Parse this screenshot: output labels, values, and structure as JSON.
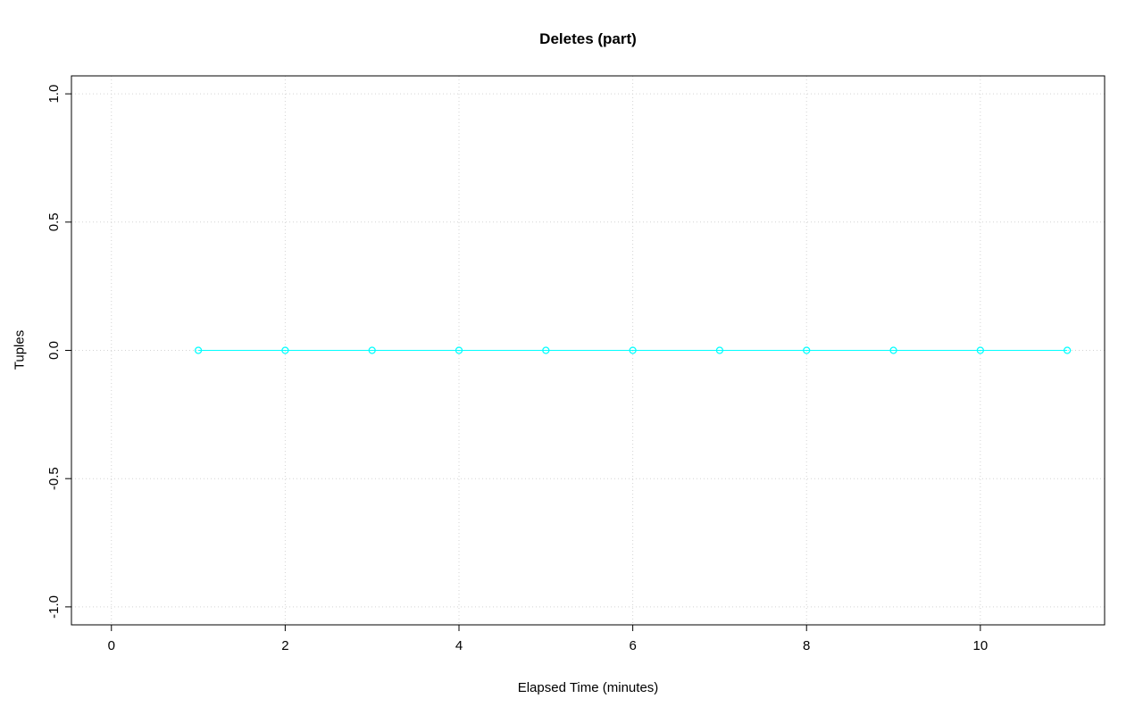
{
  "chart_data": {
    "type": "line",
    "title": "Deletes (part)",
    "xlabel": "Elapsed Time (minutes)",
    "ylabel": "Tuples",
    "x": [
      1,
      2,
      3,
      4,
      5,
      6,
      7,
      8,
      9,
      10,
      11
    ],
    "y": [
      0,
      0,
      0,
      0,
      0,
      0,
      0,
      0,
      0,
      0,
      0
    ],
    "marker": "open-circle",
    "series_color": "#00FFFF",
    "xticks": [
      0,
      2,
      4,
      6,
      8,
      10
    ],
    "yticks": [
      -1.0,
      -0.5,
      0.0,
      0.5,
      1.0
    ],
    "xtick_labels": [
      "0",
      "2",
      "4",
      "6",
      "8",
      "10"
    ],
    "ytick_labels": [
      "-1.0",
      "-0.5",
      "0.0",
      "0.5",
      "1.0"
    ],
    "xlim": [
      -0.46,
      11.43
    ],
    "ylim": [
      -1.07,
      1.07
    ],
    "grid": true,
    "grid_color": "#d3d3d3",
    "axis_color": "#000000",
    "background_color": "#ffffff"
  }
}
